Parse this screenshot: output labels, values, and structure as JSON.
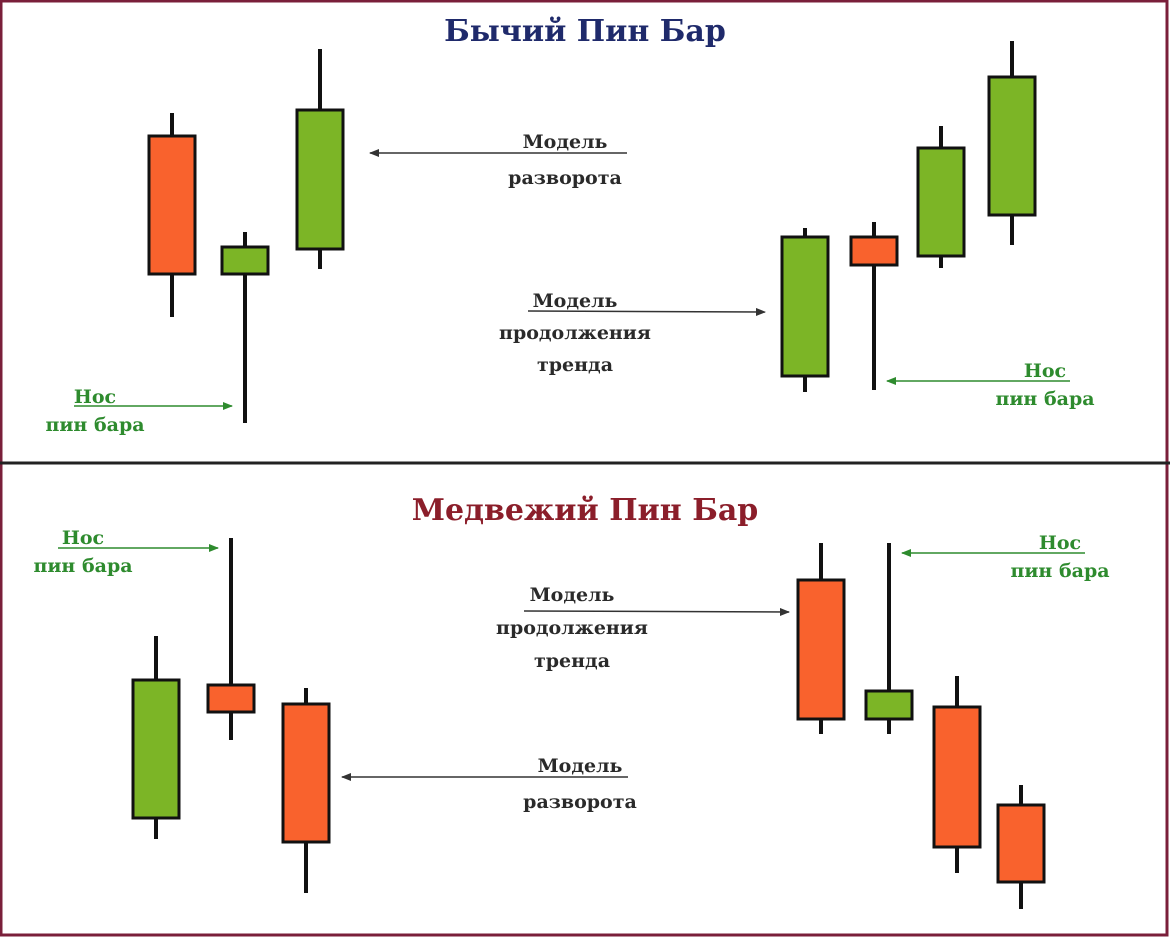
{
  "colors": {
    "bull_body": "#7cb526",
    "bear_body": "#f9622d",
    "outline": "#111111",
    "arrow_dark": "#333333",
    "arrow_green": "#2e8b2e",
    "frame": "#7a1f3a",
    "title_bull": "#1f2a6b",
    "title_bear": "#8b1e2a"
  },
  "top": {
    "title": "Бычий Пин Бар",
    "reversal": {
      "line1": "Модель",
      "line2": "разворота"
    },
    "continuation": {
      "line1": "Модель",
      "line2": "продолжения",
      "line3": "тренда"
    },
    "nose_left": {
      "line1": "Нос",
      "line2": "пин бара"
    },
    "nose_right": {
      "line1": "Нос",
      "line2": "пин бара"
    }
  },
  "bottom": {
    "title": "Медвежий Пин Бар",
    "nose_left": {
      "line1": "Нос",
      "line2": "пин бара"
    },
    "continuation": {
      "line1": "Модель",
      "line2": "продолжения",
      "line3": "тренда"
    },
    "reversal": {
      "line1": "Модель",
      "line2": "разворота"
    },
    "nose_right": {
      "line1": "Нос",
      "line2": "пин бара"
    }
  },
  "candles": [
    {
      "name": "top-left-candle-1",
      "type": "bear"
    },
    {
      "name": "top-left-pinbar",
      "type": "bull"
    },
    {
      "name": "top-left-candle-3",
      "type": "bull"
    },
    {
      "name": "top-right-candle-1",
      "type": "bull"
    },
    {
      "name": "top-right-pinbar",
      "type": "bear"
    },
    {
      "name": "top-right-candle-3",
      "type": "bull"
    },
    {
      "name": "top-right-candle-4",
      "type": "bull"
    },
    {
      "name": "bottom-left-candle-1",
      "type": "bull"
    },
    {
      "name": "bottom-left-pinbar",
      "type": "bear"
    },
    {
      "name": "bottom-left-candle-3",
      "type": "bear"
    },
    {
      "name": "bottom-right-candle-1",
      "type": "bear"
    },
    {
      "name": "bottom-right-pinbar",
      "type": "bull"
    },
    {
      "name": "bottom-right-candle-3",
      "type": "bear"
    },
    {
      "name": "bottom-right-candle-4",
      "type": "bear"
    }
  ]
}
